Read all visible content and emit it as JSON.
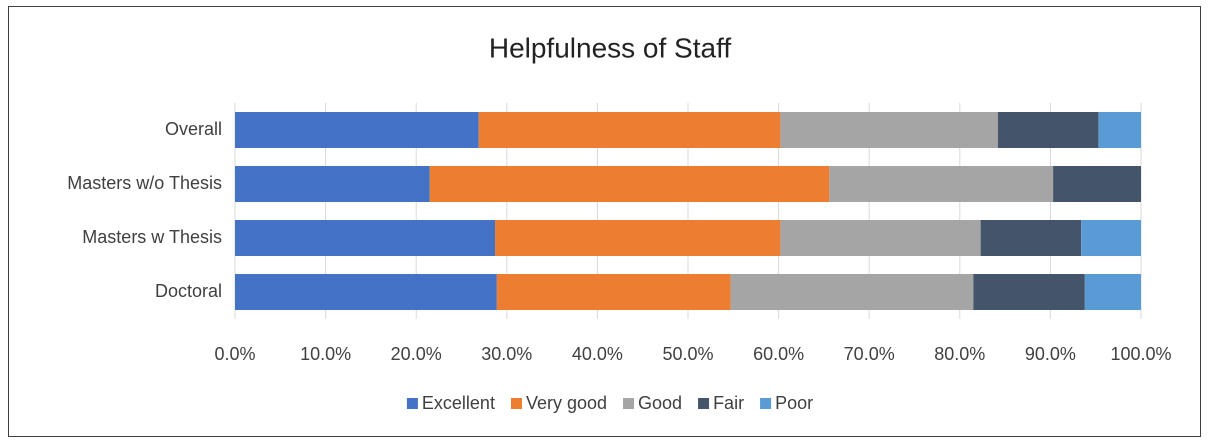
{
  "chart_data": {
    "type": "stacked_barh",
    "title": "Helpfulness of Staff",
    "categories": [
      "Overall",
      "Masters w/o Thesis",
      "Masters w Thesis",
      "Doctoral"
    ],
    "series": [
      {
        "name": "Excellent",
        "color": "#4472c4",
        "values": [
          26.9,
          21.5,
          28.7,
          28.9
        ]
      },
      {
        "name": "Very good",
        "color": "#ed7d31",
        "values": [
          33.3,
          44.1,
          31.5,
          25.8
        ]
      },
      {
        "name": "Good",
        "color": "#a5a5a5",
        "values": [
          24.0,
          24.7,
          22.1,
          26.8
        ]
      },
      {
        "name": "Fair",
        "color": "#44546a",
        "values": [
          11.1,
          9.7,
          11.1,
          12.3
        ]
      },
      {
        "name": "Poor",
        "color": "#5b9bd5",
        "values": [
          4.7,
          0,
          6.6,
          6.2
        ]
      }
    ],
    "xlim": [
      0,
      100
    ],
    "xticks": [
      {
        "value": 0,
        "label": "0.0%"
      },
      {
        "value": 10,
        "label": "10.0%"
      },
      {
        "value": 20,
        "label": "20.0%"
      },
      {
        "value": 30,
        "label": "30.0%"
      },
      {
        "value": 40,
        "label": "40.0%"
      },
      {
        "value": 50,
        "label": "50.0%"
      },
      {
        "value": 60,
        "label": "60.0%"
      },
      {
        "value": 70,
        "label": "70.0%"
      },
      {
        "value": 80,
        "label": "80.0%"
      },
      {
        "value": 90,
        "label": "90.0%"
      },
      {
        "value": 100,
        "label": "100.0%"
      }
    ],
    "grid": true,
    "legend": "bottom"
  }
}
